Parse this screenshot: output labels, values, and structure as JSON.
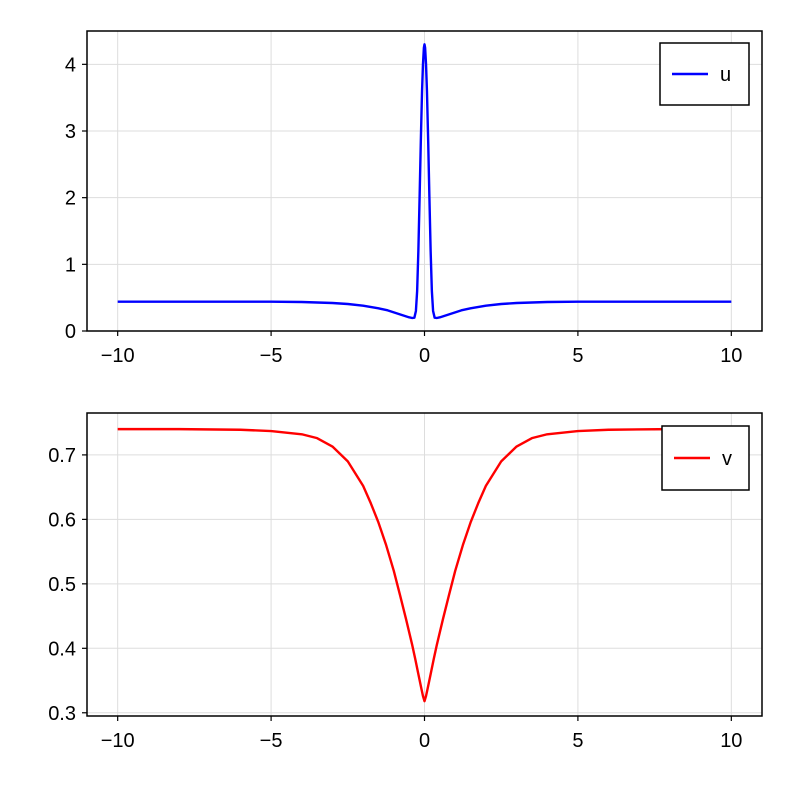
{
  "chart_data": [
    {
      "type": "line",
      "title": "",
      "xlabel": "",
      "ylabel": "",
      "xlim": [
        -11,
        11
      ],
      "ylim": [
        0,
        4.5
      ],
      "xticks": [
        -10,
        -5,
        0,
        5,
        10
      ],
      "xtick_labels": [
        "−10",
        "−5",
        "0",
        "5",
        "10"
      ],
      "yticks": [
        0,
        1,
        2,
        3,
        4
      ],
      "ytick_labels": [
        "0",
        "1",
        "2",
        "3",
        "4"
      ],
      "grid": true,
      "legend_position": "top-right",
      "series": [
        {
          "name": "u",
          "color": "#0000ff",
          "x": [
            -10,
            -9,
            -8,
            -7,
            -6,
            -5,
            -4,
            -3,
            -2.5,
            -2,
            -1.5,
            -1.2,
            -1,
            -0.8,
            -0.6,
            -0.5,
            -0.4,
            -0.33,
            -0.28,
            -0.24,
            -0.2,
            -0.16,
            -0.12,
            -0.08,
            -0.05,
            -0.02,
            0,
            0.02,
            0.05,
            0.08,
            0.12,
            0.16,
            0.2,
            0.24,
            0.28,
            0.33,
            0.4,
            0.5,
            0.6,
            0.8,
            1,
            1.2,
            1.5,
            2,
            2.5,
            3,
            4,
            5,
            6,
            7,
            8,
            9,
            10
          ],
          "y": [
            0.44,
            0.44,
            0.44,
            0.44,
            0.44,
            0.44,
            0.435,
            0.42,
            0.405,
            0.38,
            0.34,
            0.31,
            0.28,
            0.25,
            0.22,
            0.205,
            0.195,
            0.2,
            0.3,
            0.6,
            1.2,
            2.0,
            2.85,
            3.6,
            4.0,
            4.25,
            4.3,
            4.25,
            4.0,
            3.6,
            2.85,
            2.0,
            1.2,
            0.6,
            0.3,
            0.2,
            0.195,
            0.205,
            0.22,
            0.25,
            0.28,
            0.31,
            0.34,
            0.38,
            0.405,
            0.42,
            0.435,
            0.44,
            0.44,
            0.44,
            0.44,
            0.44,
            0.44
          ]
        }
      ]
    },
    {
      "type": "line",
      "title": "",
      "xlabel": "",
      "ylabel": "",
      "xlim": [
        -11,
        11
      ],
      "ylim": [
        0.295,
        0.765
      ],
      "xticks": [
        -10,
        -5,
        0,
        5,
        10
      ],
      "xtick_labels": [
        "−10",
        "−5",
        "0",
        "5",
        "10"
      ],
      "yticks": [
        0.3,
        0.4,
        0.5,
        0.6,
        0.7
      ],
      "ytick_labels": [
        "0.3",
        "0.4",
        "0.5",
        "0.6",
        "0.7"
      ],
      "grid": true,
      "legend_position": "top-right",
      "series": [
        {
          "name": "v",
          "color": "#ff0000",
          "x": [
            -10,
            -8,
            -6,
            -5,
            -4,
            -3.5,
            -3,
            -2.5,
            -2,
            -1.75,
            -1.5,
            -1.25,
            -1,
            -0.8,
            -0.6,
            -0.4,
            -0.3,
            -0.2,
            -0.1,
            -0.05,
            0,
            0.05,
            0.1,
            0.2,
            0.3,
            0.4,
            0.6,
            0.8,
            1,
            1.25,
            1.5,
            1.75,
            2,
            2.5,
            3,
            3.5,
            4,
            5,
            6,
            8,
            10
          ],
          "y": [
            0.74,
            0.74,
            0.739,
            0.737,
            0.732,
            0.726,
            0.713,
            0.69,
            0.652,
            0.625,
            0.595,
            0.56,
            0.52,
            0.483,
            0.445,
            0.405,
            0.383,
            0.36,
            0.337,
            0.326,
            0.318,
            0.326,
            0.337,
            0.36,
            0.383,
            0.405,
            0.445,
            0.483,
            0.52,
            0.56,
            0.595,
            0.625,
            0.652,
            0.69,
            0.713,
            0.726,
            0.732,
            0.737,
            0.739,
            0.74,
            0.74
          ]
        }
      ]
    }
  ]
}
